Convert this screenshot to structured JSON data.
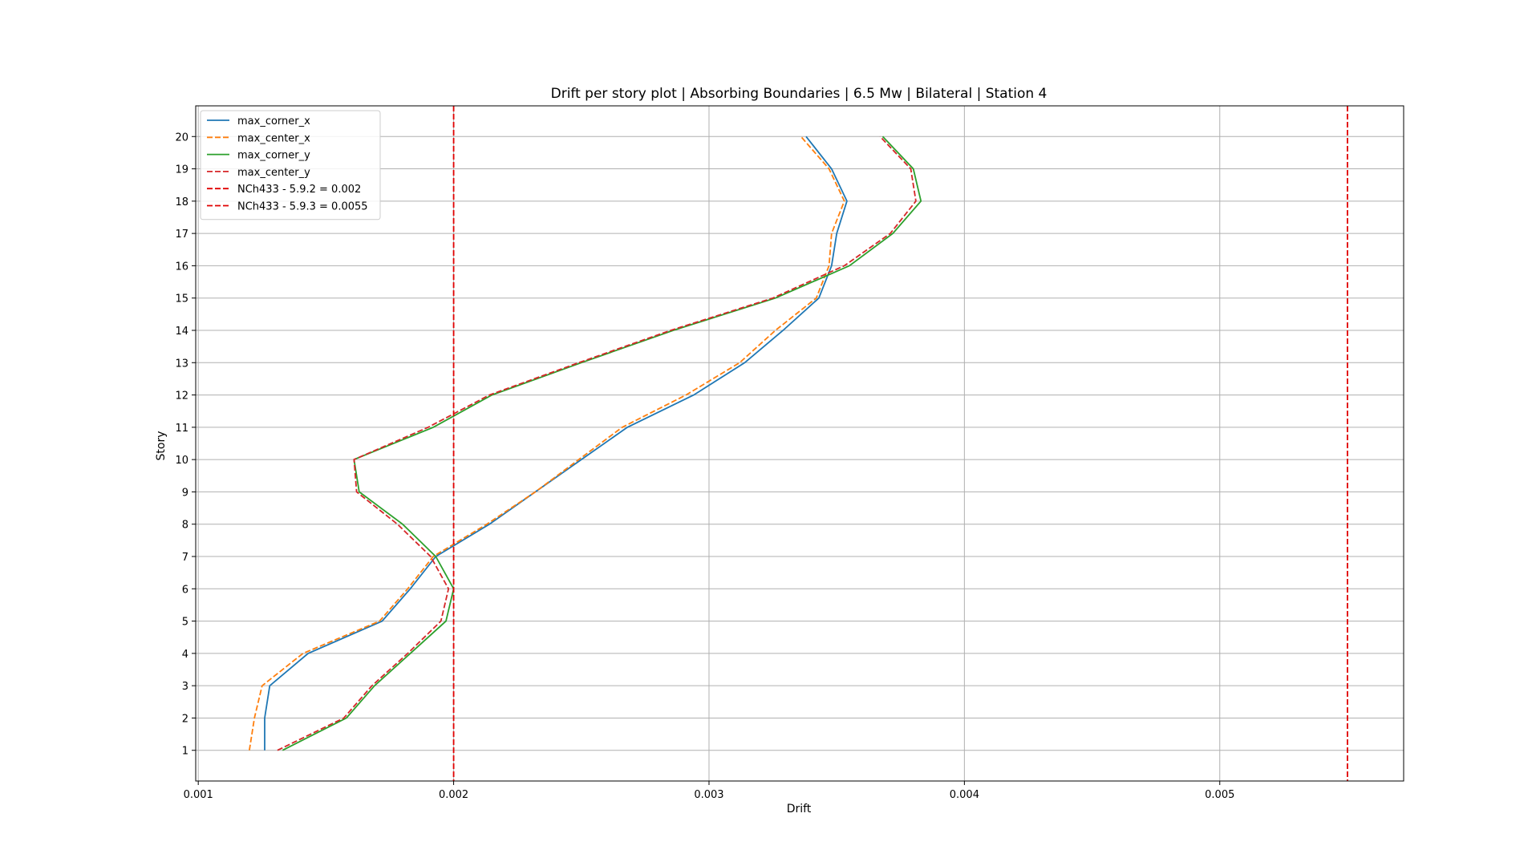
{
  "chart_data": {
    "type": "line",
    "title": "Drift per story plot | Absorbing Boundaries |  6.5 Mw | Bilateral | Station 4",
    "xlabel": "Drift",
    "ylabel": "Story",
    "xlim": [
      0.00099,
      0.00572
    ],
    "ylim": [
      0.05,
      20.95
    ],
    "xticks": [
      0.001,
      0.002,
      0.003,
      0.004,
      0.005
    ],
    "xtick_labels": [
      "0.001",
      "0.002",
      "0.003",
      "0.004",
      "0.005"
    ],
    "yticks": [
      1,
      2,
      3,
      4,
      5,
      6,
      7,
      8,
      9,
      10,
      11,
      12,
      13,
      14,
      15,
      16,
      17,
      18,
      19,
      20
    ],
    "ytick_labels": [
      "1",
      "2",
      "3",
      "4",
      "5",
      "6",
      "7",
      "8",
      "9",
      "10",
      "11",
      "12",
      "13",
      "14",
      "15",
      "16",
      "17",
      "18",
      "19",
      "20"
    ],
    "grid": true,
    "legend_position": "top-left",
    "stories": [
      1,
      2,
      3,
      4,
      5,
      6,
      7,
      8,
      9,
      10,
      11,
      12,
      13,
      14,
      15,
      16,
      17,
      18,
      19,
      20
    ],
    "series": [
      {
        "name": "max_corner_x",
        "color": "#1f77b4",
        "dash": "solid",
        "values": [
          0.00126,
          0.00126,
          0.00128,
          0.00143,
          0.00172,
          0.00183,
          0.00193,
          0.00214,
          0.00232,
          0.0025,
          0.00268,
          0.00294,
          0.00314,
          0.00329,
          0.00343,
          0.00348,
          0.0035,
          0.00354,
          0.00348,
          0.00338
        ]
      },
      {
        "name": "max_center_x",
        "color": "#ff7f0e",
        "dash": "dashed",
        "values": [
          0.0012,
          0.00122,
          0.00125,
          0.00141,
          0.00171,
          0.00182,
          0.00192,
          0.00213,
          0.00232,
          0.00249,
          0.00266,
          0.00291,
          0.00312,
          0.00326,
          0.00342,
          0.00347,
          0.00348,
          0.00353,
          0.00347,
          0.00336
        ]
      },
      {
        "name": "max_corner_y",
        "color": "#2ca02c",
        "dash": "solid",
        "values": [
          0.00133,
          0.00158,
          0.00169,
          0.00183,
          0.00197,
          0.002,
          0.00193,
          0.0018,
          0.00163,
          0.00161,
          0.00192,
          0.00215,
          0.0025,
          0.00286,
          0.00326,
          0.00355,
          0.00372,
          0.00383,
          0.0038,
          0.00368
        ]
      },
      {
        "name": "max_center_y",
        "color": "#d62728",
        "dash": "dashed",
        "values": [
          0.00131,
          0.00157,
          0.00168,
          0.00182,
          0.00195,
          0.00198,
          0.00191,
          0.00178,
          0.00162,
          0.00161,
          0.0019,
          0.00214,
          0.00249,
          0.00285,
          0.00325,
          0.00353,
          0.00371,
          0.00381,
          0.00379,
          0.00367
        ]
      }
    ],
    "reference_lines": [
      {
        "name": "NCh433 - 5.9.2 = 0.002",
        "value": 0.002,
        "color": "#e00000",
        "dash": "dashed"
      },
      {
        "name": "NCh433 - 5.9.3 = 0.0055",
        "value": 0.0055,
        "color": "#e00000",
        "dash": "dashed"
      }
    ]
  }
}
